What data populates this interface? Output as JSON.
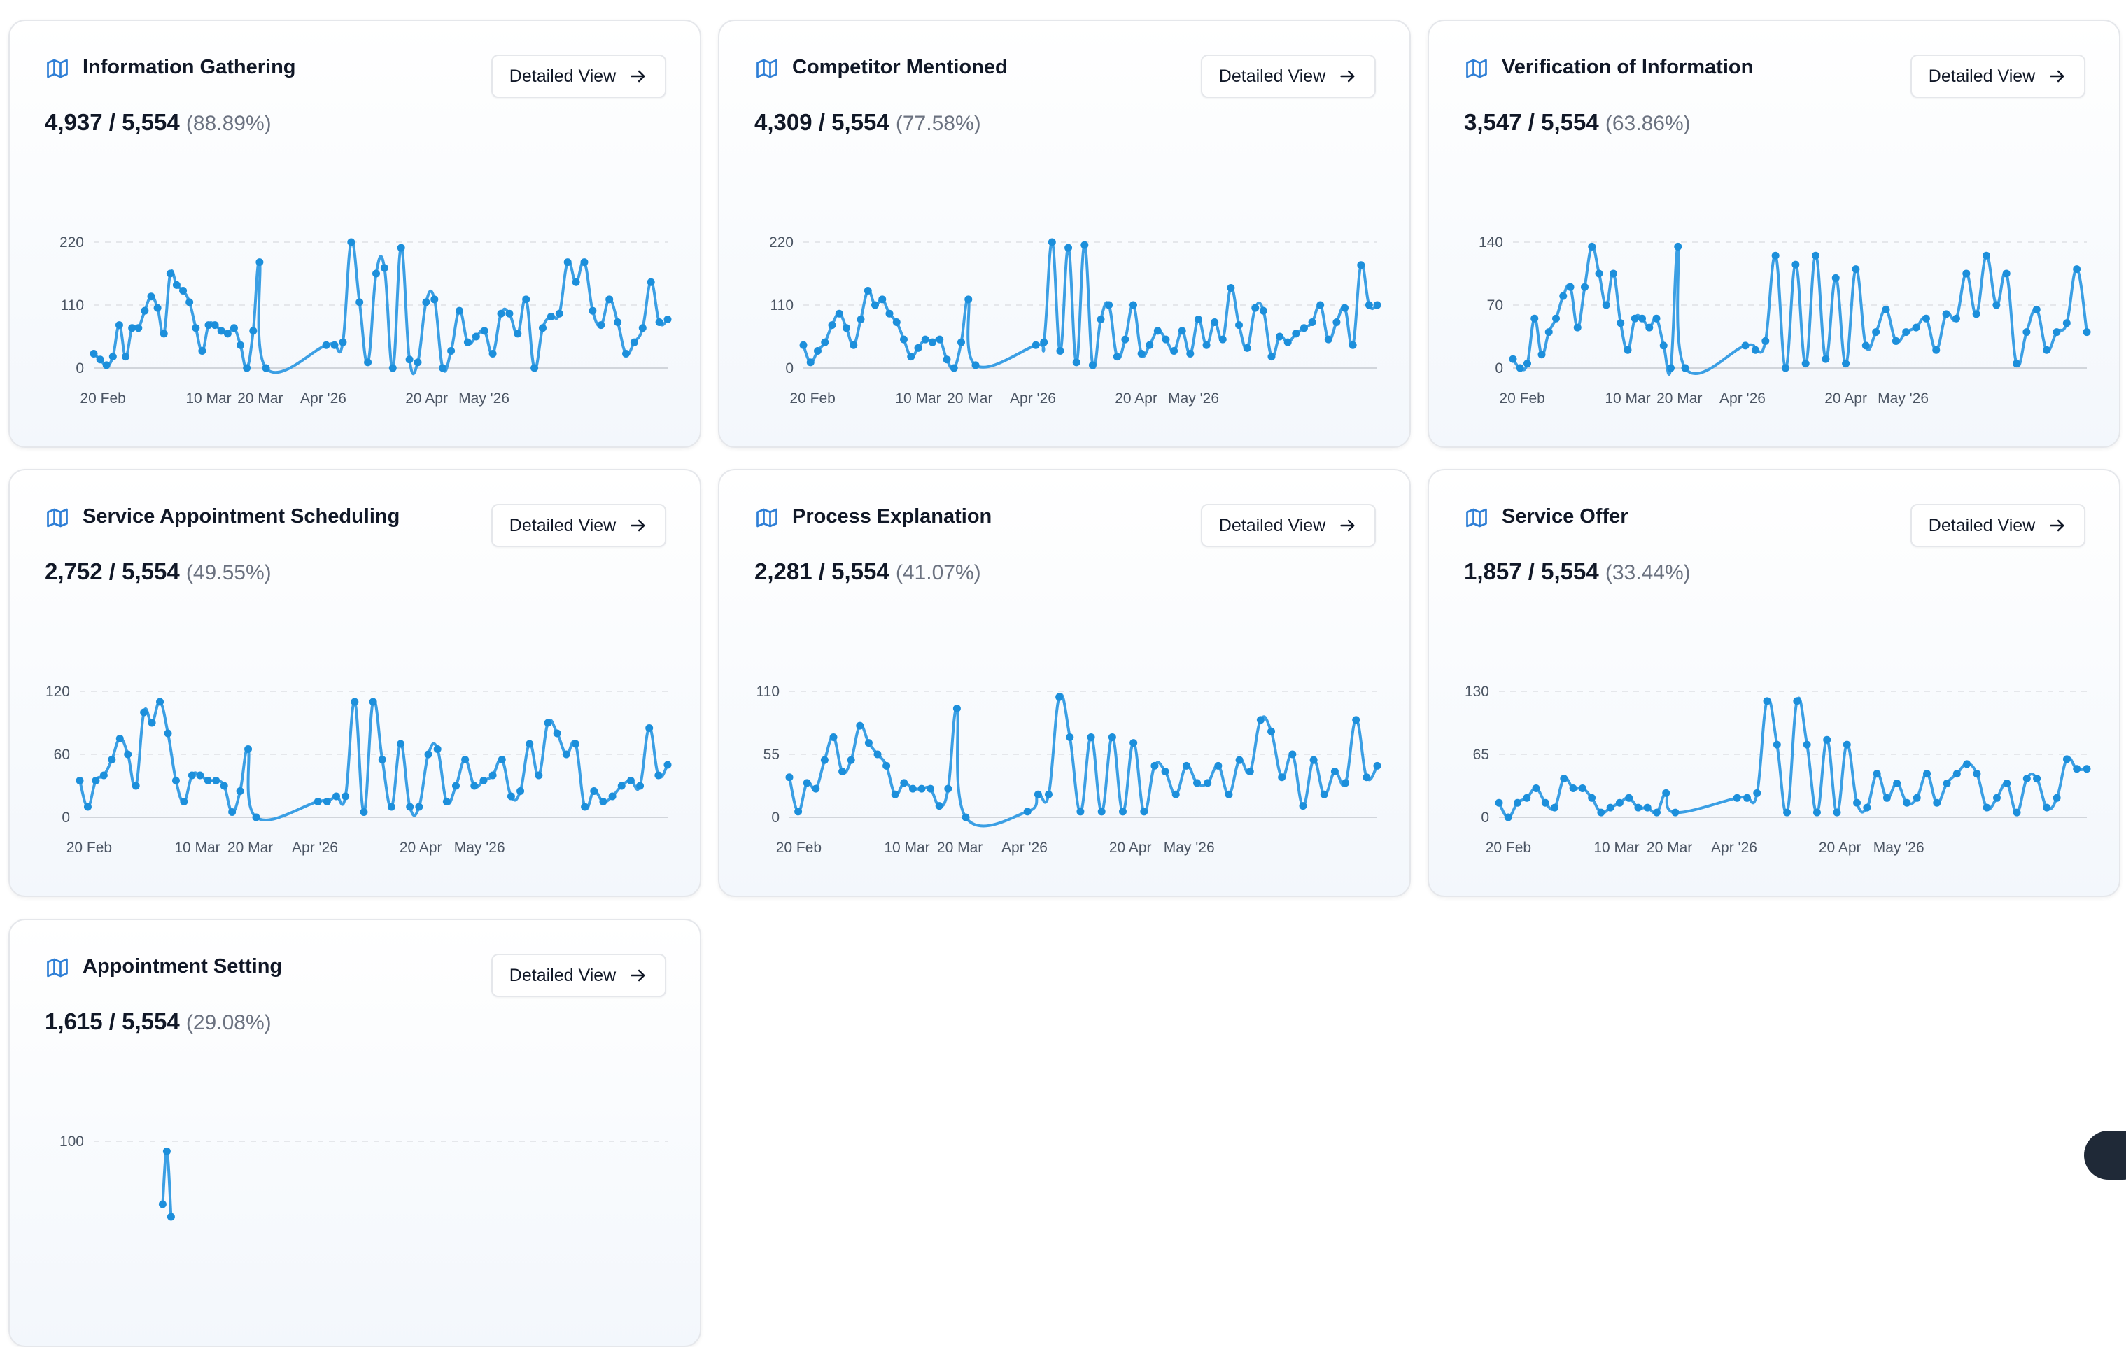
{
  "accent_color": "#1c8fdb",
  "button_label": "Detailed View",
  "x_tick_labels": [
    "20 Feb",
    "10 Mar",
    "20 Mar",
    "Apr '26",
    "20 Apr",
    "May '26"
  ],
  "cards": [
    {
      "title": "Information Gathering",
      "count": "4,937",
      "total": "5,554",
      "percent": "(88.89%)",
      "y_ticks": [
        "0",
        "110",
        "220"
      ],
      "y_max": 220,
      "chart_data": {
        "type": "line",
        "title": "",
        "xlabel": "",
        "ylabel": "",
        "ylim": [
          0,
          220
        ],
        "grid": true,
        "first_segment": [
          25,
          15,
          5,
          20,
          75,
          20,
          70,
          70,
          100,
          125,
          105,
          60,
          165,
          145,
          135,
          115,
          70,
          30,
          75,
          75,
          65,
          60,
          70,
          40,
          0,
          65,
          185,
          0
        ],
        "second_segment": [
          40,
          40,
          45,
          220,
          115,
          10,
          165,
          175,
          0,
          210,
          15,
          10,
          115,
          120,
          0,
          30,
          100,
          45,
          55,
          65,
          25,
          95,
          95,
          60,
          120,
          0,
          70,
          90,
          95,
          185,
          150,
          185,
          100,
          75,
          120,
          80,
          25,
          45,
          70,
          150,
          80,
          85
        ]
      }
    },
    {
      "title": "Competitor Mentioned",
      "count": "4,309",
      "total": "5,554",
      "percent": "(77.58%)",
      "y_ticks": [
        "0",
        "110",
        "220"
      ],
      "y_max": 220,
      "chart_data": {
        "type": "line",
        "title": "",
        "xlabel": "",
        "ylabel": "",
        "ylim": [
          0,
          220
        ],
        "grid": true,
        "first_segment": [
          40,
          10,
          30,
          45,
          75,
          95,
          70,
          40,
          85,
          135,
          110,
          120,
          95,
          80,
          50,
          20,
          35,
          50,
          45,
          50,
          15,
          0,
          45,
          120,
          5
        ],
        "second_segment": [
          40,
          45,
          220,
          30,
          210,
          10,
          215,
          5,
          85,
          110,
          20,
          50,
          110,
          25,
          40,
          65,
          50,
          30,
          65,
          25,
          85,
          40,
          80,
          50,
          140,
          75,
          35,
          105,
          100,
          20,
          55,
          45,
          60,
          70,
          80,
          110,
          50,
          80,
          105,
          40,
          180,
          110,
          110
        ]
      }
    },
    {
      "title": "Verification of Information",
      "count": "3,547",
      "total": "5,554",
      "percent": "(63.86%)",
      "y_ticks": [
        "0",
        "70",
        "140"
      ],
      "y_max": 140,
      "chart_data": {
        "type": "line",
        "title": "",
        "xlabel": "",
        "ylabel": "",
        "ylim": [
          0,
          140
        ],
        "grid": true,
        "first_segment": [
          10,
          0,
          5,
          55,
          15,
          40,
          55,
          80,
          90,
          45,
          90,
          135,
          105,
          70,
          105,
          50,
          20,
          55,
          55,
          45,
          55,
          25,
          0,
          135,
          0
        ],
        "second_segment": [
          25,
          20,
          30,
          125,
          0,
          115,
          5,
          125,
          10,
          100,
          5,
          110,
          25,
          40,
          65,
          30,
          40,
          45,
          55,
          20,
          60,
          55,
          105,
          60,
          125,
          70,
          105,
          5,
          40,
          65,
          20,
          40,
          50,
          110,
          40
        ]
      }
    },
    {
      "title": "Service Appointment Scheduling",
      "count": "2,752",
      "total": "5,554",
      "percent": "(49.55%)",
      "y_ticks": [
        "0",
        "60",
        "120"
      ],
      "y_max": 120,
      "chart_data": {
        "type": "line",
        "title": "",
        "xlabel": "",
        "ylabel": "",
        "ylim": [
          0,
          120
        ],
        "grid": true,
        "first_segment": [
          35,
          10,
          35,
          40,
          55,
          75,
          60,
          30,
          100,
          90,
          110,
          80,
          35,
          15,
          40,
          40,
          35,
          35,
          30,
          5,
          25,
          65,
          0
        ],
        "second_segment": [
          15,
          15,
          20,
          20,
          110,
          5,
          110,
          55,
          10,
          70,
          10,
          10,
          60,
          65,
          15,
          30,
          55,
          30,
          35,
          40,
          55,
          20,
          25,
          70,
          40,
          90,
          80,
          60,
          70,
          10,
          25,
          15,
          20,
          30,
          35,
          30,
          85,
          40,
          50
        ]
      }
    },
    {
      "title": "Process Explanation",
      "count": "2,281",
      "total": "5,554",
      "percent": "(41.07%)",
      "y_ticks": [
        "0",
        "55",
        "110"
      ],
      "y_max": 110,
      "chart_data": {
        "type": "line",
        "title": "",
        "xlabel": "",
        "ylabel": "",
        "ylim": [
          0,
          110
        ],
        "grid": true,
        "first_segment": [
          35,
          5,
          30,
          25,
          50,
          70,
          40,
          50,
          80,
          65,
          55,
          45,
          20,
          30,
          25,
          25,
          25,
          10,
          25,
          95,
          0
        ],
        "second_segment": [
          5,
          20,
          20,
          105,
          70,
          5,
          70,
          5,
          70,
          5,
          65,
          5,
          45,
          40,
          20,
          45,
          30,
          30,
          45,
          20,
          50,
          40,
          85,
          75,
          35,
          55,
          10,
          50,
          20,
          40,
          30,
          85,
          35,
          45
        ]
      }
    },
    {
      "title": "Service Offer",
      "count": "1,857",
      "total": "5,554",
      "percent": "(33.44%)",
      "y_ticks": [
        "0",
        "65",
        "130"
      ],
      "y_max": 130,
      "chart_data": {
        "type": "line",
        "title": "",
        "xlabel": "",
        "ylabel": "",
        "ylim": [
          0,
          130
        ],
        "grid": true,
        "first_segment": [
          15,
          0,
          15,
          20,
          30,
          15,
          10,
          40,
          30,
          30,
          20,
          5,
          10,
          15,
          20,
          10,
          10,
          5,
          25,
          5
        ],
        "second_segment": [
          20,
          20,
          25,
          120,
          75,
          5,
          120,
          75,
          5,
          80,
          5,
          75,
          15,
          10,
          45,
          20,
          35,
          15,
          20,
          45,
          15,
          35,
          45,
          55,
          45,
          10,
          20,
          35,
          5,
          40,
          40,
          10,
          20,
          60,
          50,
          50
        ]
      }
    },
    {
      "title": "Appointment Setting",
      "count": "1,615",
      "total": "5,554",
      "percent": "(29.08%)",
      "y_ticks": [
        "100"
      ],
      "y_max": 100,
      "chart_data": {
        "type": "line",
        "title": "",
        "xlabel": "",
        "ylabel": "",
        "ylim": [
          0,
          100
        ],
        "grid": true,
        "first_segment": [
          50,
          92,
          40
        ],
        "second_segment": []
      }
    }
  ]
}
